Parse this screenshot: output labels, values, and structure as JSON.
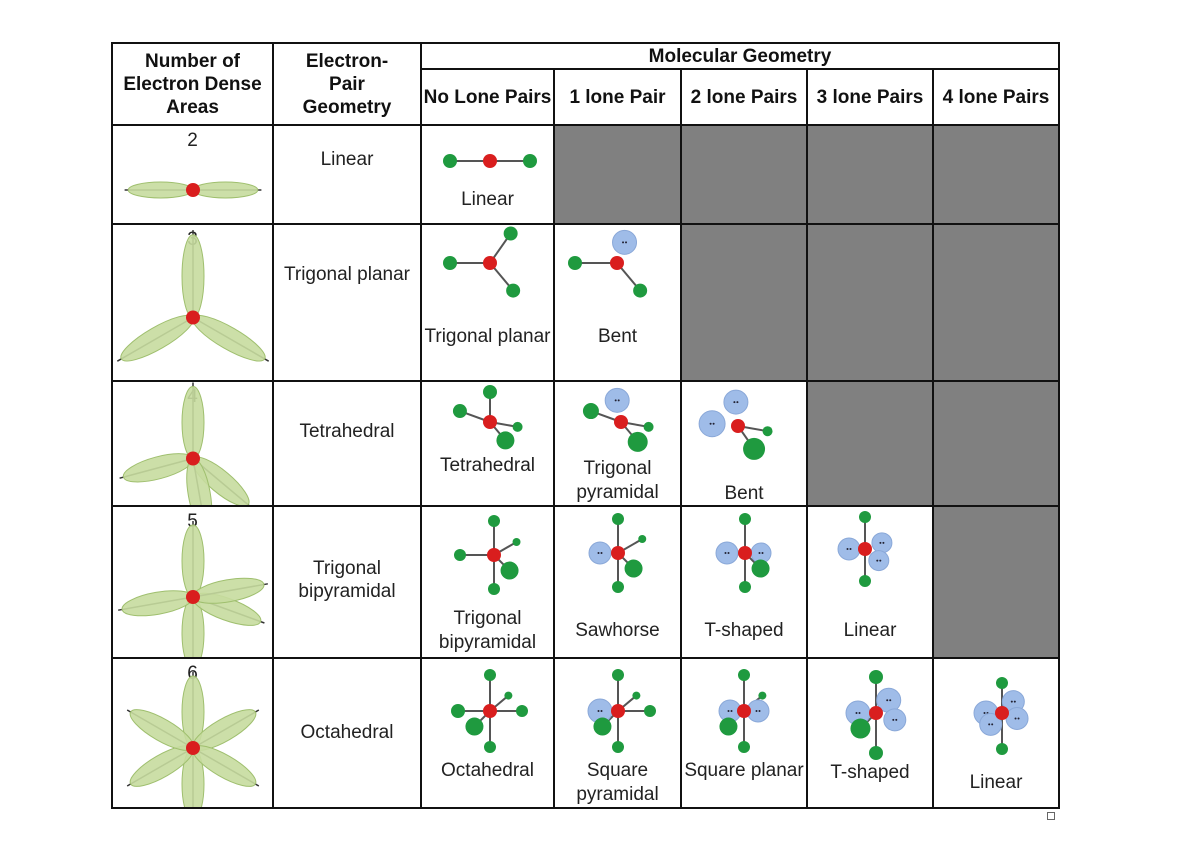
{
  "header": {
    "col_dense": "Number of Electron Dense Areas",
    "col_epg": "Electron-Pair Geometry",
    "col_mg": "Molecular Geometry",
    "sub": [
      "No Lone Pairs",
      "1 lone Pair",
      "2 lone Pairs",
      "3 lone Pairs",
      "4 lone Pairs"
    ]
  },
  "colors": {
    "unavailable": "#808080",
    "atom": "#1f9a3f",
    "central": "#d91e1e",
    "lone_pair": "#9fbce8",
    "domain": "#c6dc9e"
  },
  "rows": [
    {
      "count": "2",
      "epg": "Linear",
      "mg": [
        "Linear",
        null,
        null,
        null,
        null
      ]
    },
    {
      "count": "3",
      "epg": "Trigonal planar",
      "mg": [
        "Trigonal planar",
        "Bent",
        null,
        null,
        null
      ]
    },
    {
      "count": "4",
      "epg": "Tetrahedral",
      "mg": [
        "Tetrahedral",
        "Trigonal pyramidal",
        "Bent",
        null,
        null
      ]
    },
    {
      "count": "5",
      "epg": "Trigonal bipyramidal",
      "mg": [
        "Trigonal bipyramidal",
        "Sawhorse",
        "T-shaped",
        "Linear",
        null
      ]
    },
    {
      "count": "6",
      "epg": "Octahedral",
      "mg": [
        "Octahedral",
        "Square pyramidal",
        "Square planar",
        "T-shaped",
        "Linear"
      ]
    }
  ]
}
